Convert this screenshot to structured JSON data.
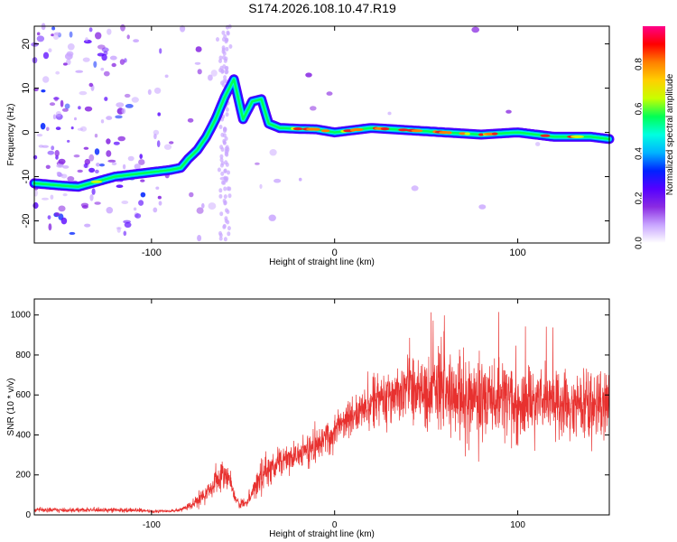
{
  "title": "S174.2026.108.10.47.R19",
  "colors": {
    "snr_line": "#e8312f",
    "ridge": "#e82020",
    "frame": "#000000"
  },
  "colormap": [
    "#ffffff",
    "#c9a6ff",
    "#8a2be2",
    "#5500ff",
    "#0022ff",
    "#00b4ff",
    "#00ffe0",
    "#00ff55",
    "#c8ff00",
    "#ffd000",
    "#ff8000",
    "#ff0000",
    "#ff0088"
  ],
  "chart_data": [
    {
      "type": "heatmap",
      "title": "S174.2026.108.10.47.R19",
      "xlabel": "Height of straight line (km)",
      "ylabel": "Frequency (Hz)",
      "xlim": [
        -164,
        150
      ],
      "ylim": [
        -25,
        24
      ],
      "xticks": [
        -100,
        0,
        100
      ],
      "yticks": [
        -20,
        -10,
        0,
        10,
        20
      ],
      "colorbar": {
        "label": "Normalized spectral amplitude",
        "range": [
          0.0,
          0.97
        ],
        "ticks": [
          "0.0",
          "0.2",
          "0.4",
          "0.6",
          "0.8"
        ]
      },
      "ridge": {
        "x": [
          -164,
          -150,
          -140,
          -120,
          -100,
          -90,
          -84,
          -80,
          -75,
          -70,
          -65,
          -60,
          -55,
          -50,
          -45,
          -40,
          -36,
          -30,
          -20,
          -10,
          0,
          20,
          40,
          60,
          80,
          100,
          120,
          140,
          150
        ],
        "y": [
          -11.5,
          -12,
          -12.3,
          -10,
          -9,
          -8.5,
          -8,
          -6,
          -4,
          -1,
          3,
          8,
          12,
          3,
          7,
          7.5,
          2,
          1,
          0.8,
          0.7,
          0,
          1,
          0.5,
          0,
          -0.5,
          0,
          -1,
          -1,
          -1.5
        ]
      }
    },
    {
      "type": "line",
      "xlabel": "Height of straight line (km)",
      "ylabel": "SNR (10 * v/v)",
      "xlim": [
        -164,
        150
      ],
      "ylim": [
        0,
        1080
      ],
      "xticks": [
        -100,
        0,
        100
      ],
      "yticks": [
        0,
        200,
        400,
        600,
        800,
        1000
      ],
      "series": [
        {
          "name": "SNR",
          "x": [
            -164,
            -140,
            -120,
            -100,
            -90,
            -85,
            -80,
            -75,
            -70,
            -66,
            -63,
            -61,
            -60,
            -58,
            -55,
            -52,
            -48,
            -45,
            -42,
            -40,
            -35,
            -30,
            -25,
            -20,
            -10,
            0,
            10,
            20,
            30,
            40,
            50,
            60,
            70,
            80,
            90,
            100,
            110,
            120,
            130,
            140,
            145,
            150
          ],
          "mean": [
            25,
            25,
            25,
            20,
            18,
            22,
            40,
            70,
            110,
            150,
            190,
            230,
            170,
            200,
            100,
            60,
            60,
            130,
            150,
            200,
            230,
            260,
            280,
            300,
            350,
            420,
            500,
            560,
            600,
            620,
            630,
            620,
            600,
            590,
            580,
            570,
            560,
            560,
            550,
            550,
            560,
            560
          ],
          "spread": [
            10,
            12,
            10,
            8,
            6,
            8,
            15,
            30,
            40,
            50,
            60,
            90,
            70,
            50,
            30,
            20,
            25,
            50,
            60,
            70,
            70,
            70,
            70,
            70,
            80,
            80,
            90,
            100,
            120,
            140,
            160,
            170,
            170,
            170,
            170,
            160,
            150,
            150,
            150,
            150,
            160,
            170
          ]
        }
      ]
    }
  ]
}
